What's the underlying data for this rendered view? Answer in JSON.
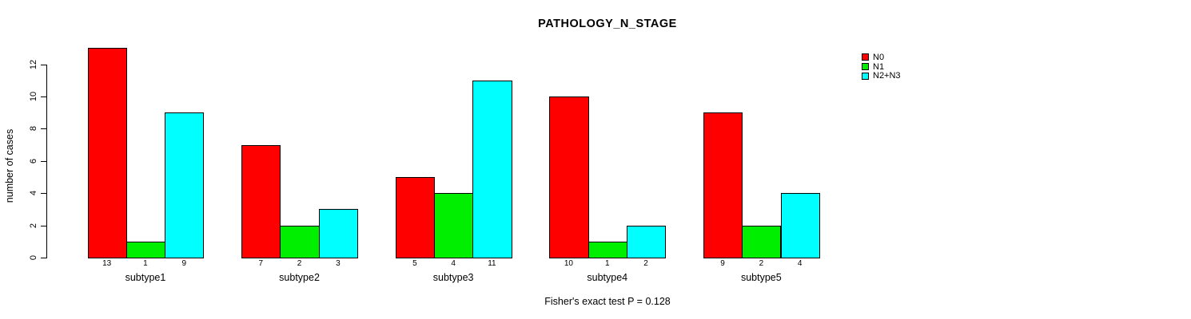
{
  "title": "PATHOLOGY_N_STAGE",
  "subtitle": "Fisher's exact test P = 0.128",
  "chart_data": {
    "type": "bar",
    "grouped": true,
    "title": "PATHOLOGY_N_STAGE",
    "subtitle": "Fisher's exact test P = 0.128",
    "categories": [
      "subtype1",
      "subtype2",
      "subtype3",
      "subtype4",
      "subtype5"
    ],
    "series": [
      {
        "name": "N0",
        "color": "#ff0000",
        "values": [
          13,
          7,
          5,
          10,
          9
        ]
      },
      {
        "name": "N1",
        "color": "#00ee00",
        "values": [
          1,
          2,
          4,
          1,
          2
        ]
      },
      {
        "name": "N2+N3",
        "color": "#00ffff",
        "values": [
          9,
          3,
          11,
          2,
          4
        ]
      }
    ],
    "bar_value_labels": [
      [
        "13",
        "1",
        "9"
      ],
      [
        "7",
        "2",
        "3"
      ],
      [
        "5",
        "4",
        "11"
      ],
      [
        "10",
        "1",
        "2"
      ],
      [
        "9",
        "2",
        "4"
      ]
    ],
    "xlabel": "",
    "ylabel": "number of cases",
    "yticks": [
      0,
      2,
      4,
      6,
      8,
      10,
      12
    ],
    "ylim": [
      0,
      13
    ],
    "grid": false,
    "legend_position": "top-right",
    "background": "#ffffff",
    "bar_border_color": "#000000"
  }
}
